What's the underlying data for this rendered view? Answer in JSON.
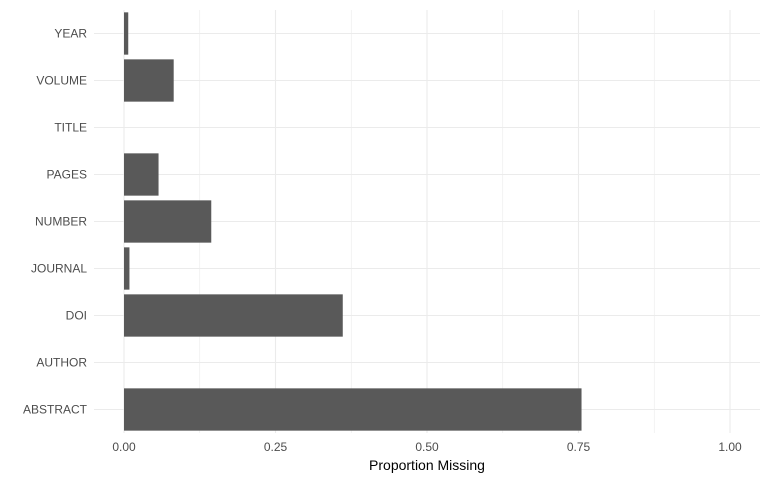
{
  "chart_data": {
    "type": "bar",
    "orientation": "horizontal",
    "categories": [
      "YEAR",
      "VOLUME",
      "TITLE",
      "PAGES",
      "NUMBER",
      "JOURNAL",
      "DOI",
      "AUTHOR",
      "ABSTRACT"
    ],
    "values": [
      0.007,
      0.082,
      0.0,
      0.057,
      0.144,
      0.009,
      0.361,
      0.0,
      0.755
    ],
    "xlabel": "Proportion Missing",
    "ylabel": "",
    "xlim": [
      0,
      1.0
    ],
    "x_ticks": [
      "0.00",
      "0.25",
      "0.50",
      "0.75",
      "1.00"
    ],
    "grid": true,
    "colors": {
      "bar": "#595959",
      "grid": "#ebebeb"
    }
  }
}
